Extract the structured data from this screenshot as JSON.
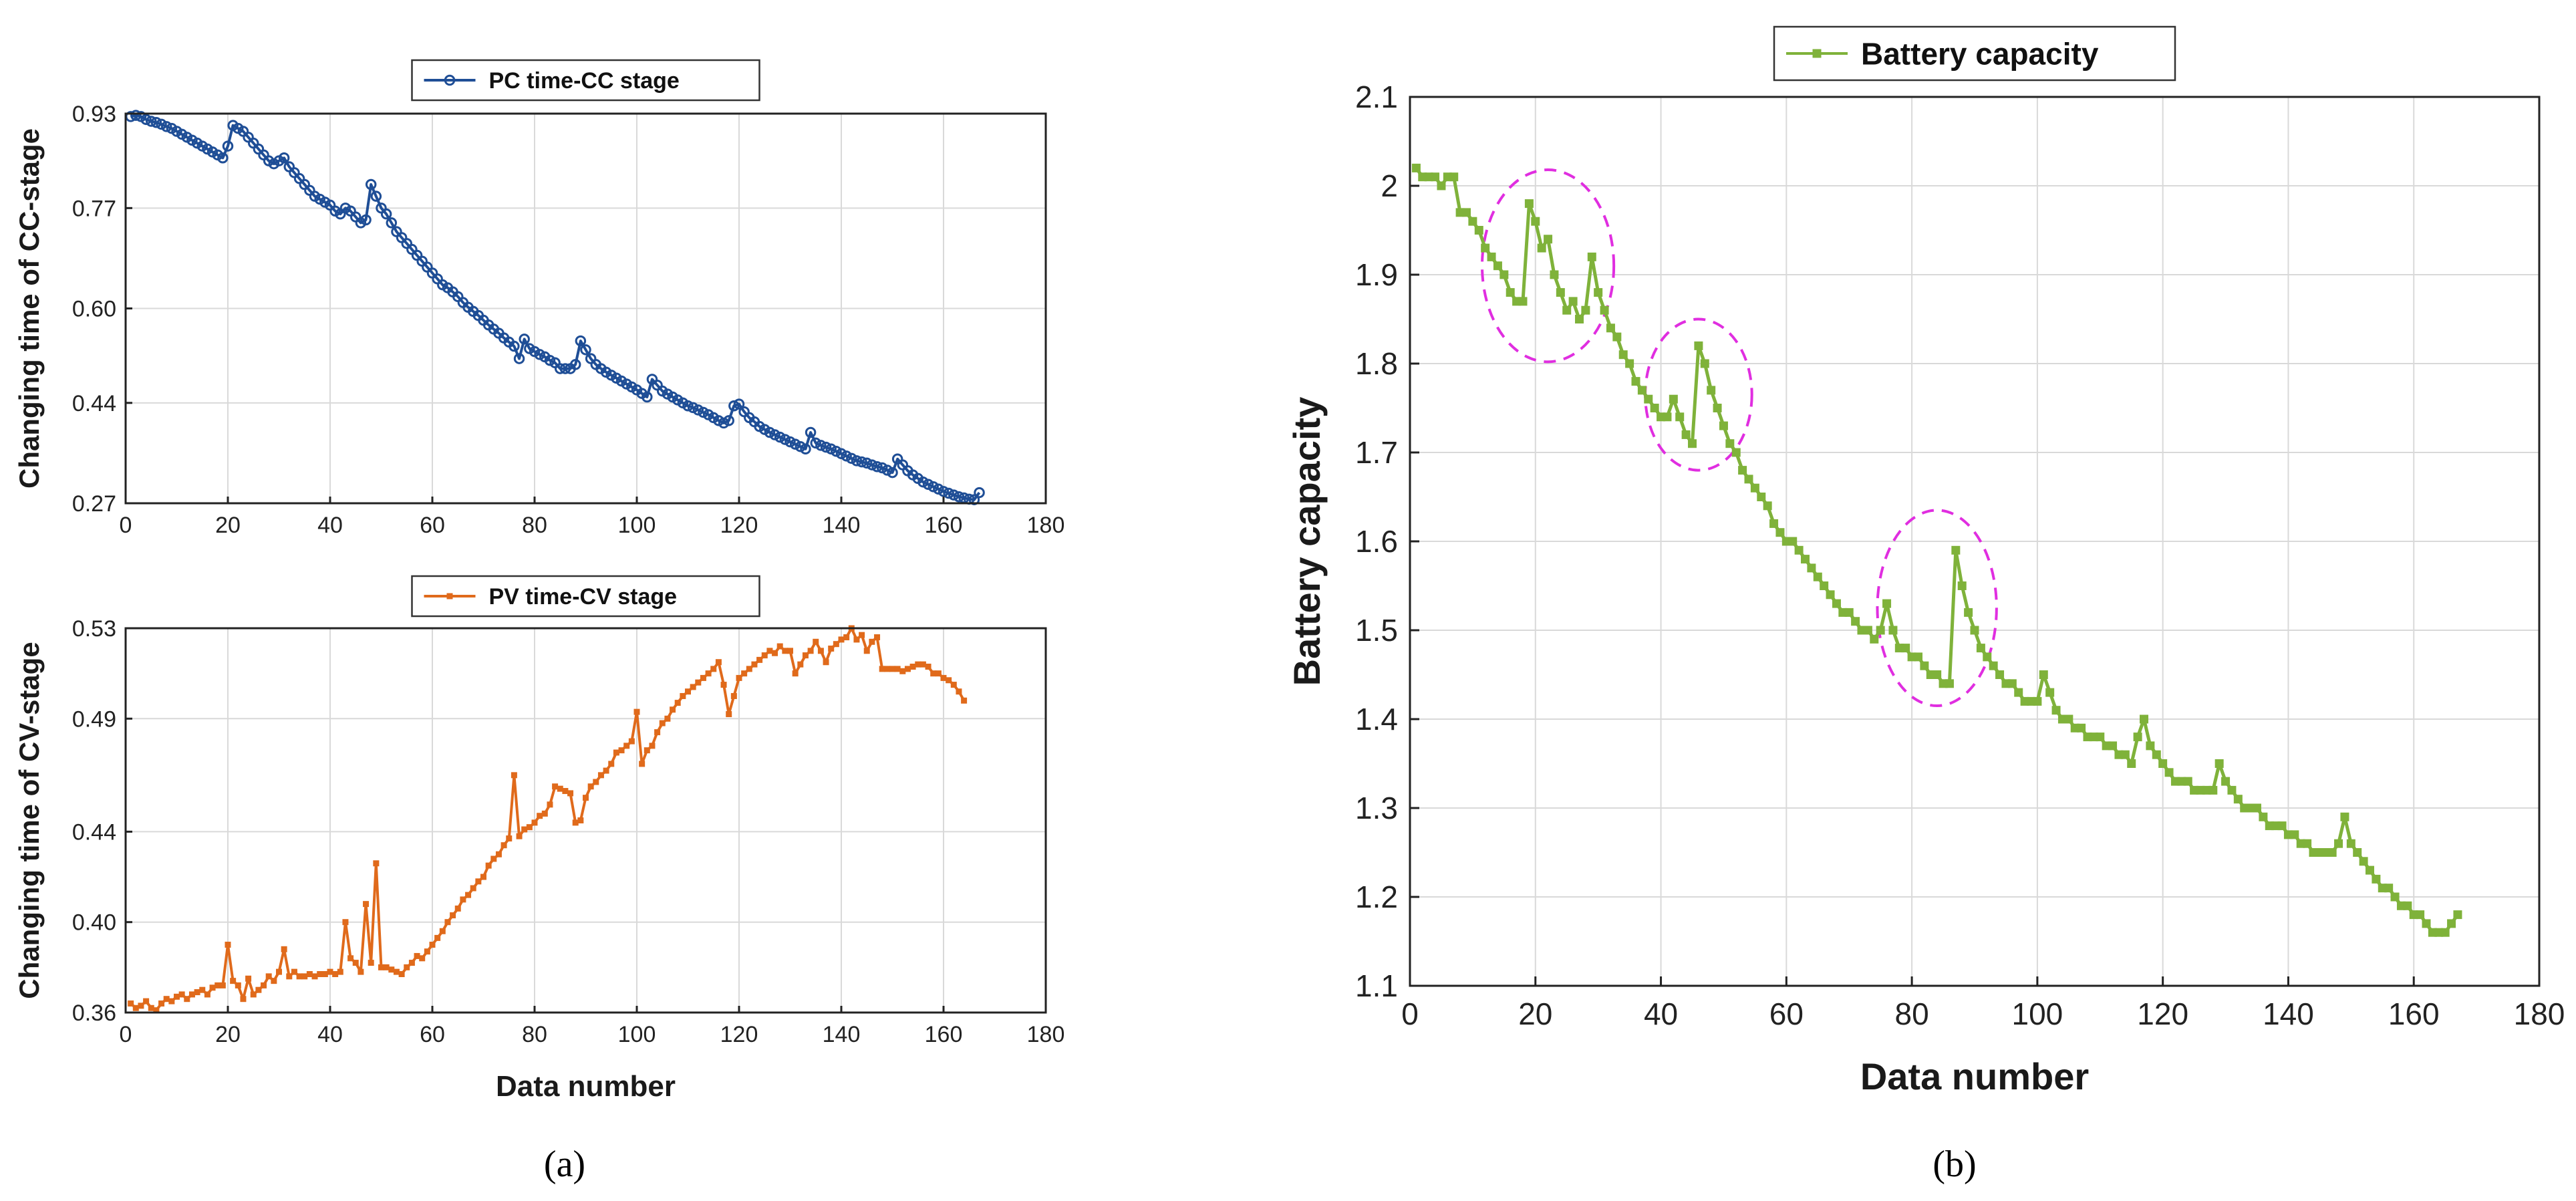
{
  "figure": {
    "panel_a_label": "(a)",
    "panel_b_label": "(b)",
    "colors": {
      "blue": "#1f4e96",
      "orange": "#e06a1b",
      "green": "#7fb23a",
      "circle": "#e02ee0",
      "grid": "#d9d9d9",
      "axis": "#222222"
    }
  },
  "chart_data": [
    {
      "id": "a-top",
      "type": "line",
      "title": "",
      "legend": "PC time-CC stage",
      "legend_position": "top-center",
      "xlabel": "",
      "ylabel": "Changing time of CC-stage",
      "xlim": [
        0,
        180
      ],
      "ylim": [
        0.27,
        0.93
      ],
      "xticks": [
        0,
        20,
        40,
        60,
        80,
        100,
        120,
        140,
        160,
        180
      ],
      "yticks": [
        0.27,
        0.44,
        0.6,
        0.77,
        0.93
      ],
      "ytick_labels": [
        "0.27",
        "0.44",
        "0.60",
        "0.77",
        "0.93"
      ],
      "grid": true,
      "marker": "circle",
      "series": [
        {
          "name": "PC time-CC stage",
          "x_start": 1,
          "values": [
            0.925,
            0.927,
            0.925,
            0.92,
            0.917,
            0.915,
            0.912,
            0.908,
            0.905,
            0.9,
            0.895,
            0.89,
            0.885,
            0.88,
            0.875,
            0.87,
            0.865,
            0.86,
            0.855,
            0.875,
            0.91,
            0.905,
            0.9,
            0.89,
            0.88,
            0.87,
            0.86,
            0.85,
            0.845,
            0.85,
            0.855,
            0.84,
            0.83,
            0.82,
            0.81,
            0.8,
            0.79,
            0.785,
            0.78,
            0.775,
            0.765,
            0.76,
            0.77,
            0.765,
            0.755,
            0.745,
            0.75,
            0.81,
            0.79,
            0.77,
            0.76,
            0.745,
            0.73,
            0.72,
            0.71,
            0.7,
            0.69,
            0.68,
            0.67,
            0.66,
            0.65,
            0.64,
            0.635,
            0.628,
            0.62,
            0.61,
            0.602,
            0.595,
            0.588,
            0.58,
            0.572,
            0.565,
            0.558,
            0.55,
            0.543,
            0.536,
            0.515,
            0.548,
            0.532,
            0.527,
            0.522,
            0.518,
            0.512,
            0.508,
            0.498,
            0.498,
            0.498,
            0.505,
            0.545,
            0.53,
            0.515,
            0.505,
            0.498,
            0.492,
            0.487,
            0.482,
            0.477,
            0.472,
            0.467,
            0.462,
            0.456,
            0.45,
            0.48,
            0.47,
            0.46,
            0.455,
            0.45,
            0.445,
            0.44,
            0.435,
            0.432,
            0.428,
            0.424,
            0.42,
            0.415,
            0.41,
            0.406,
            0.41,
            0.435,
            0.438,
            0.425,
            0.415,
            0.408,
            0.4,
            0.395,
            0.39,
            0.386,
            0.382,
            0.378,
            0.374,
            0.37,
            0.366,
            0.362,
            0.39,
            0.372,
            0.368,
            0.365,
            0.362,
            0.358,
            0.354,
            0.35,
            0.346,
            0.342,
            0.34,
            0.338,
            0.335,
            0.332,
            0.33,
            0.326,
            0.322,
            0.345,
            0.335,
            0.325,
            0.318,
            0.312,
            0.306,
            0.302,
            0.298,
            0.294,
            0.29,
            0.287,
            0.284,
            0.281,
            0.279,
            0.277,
            0.276,
            0.288
          ]
        }
      ]
    },
    {
      "id": "a-bottom",
      "type": "line",
      "title": "",
      "legend": "PV time-CV stage",
      "legend_position": "top-center",
      "xlabel": "Data number",
      "ylabel": "Changing time of CV-stage",
      "xlim": [
        0,
        180
      ],
      "ylim": [
        0.36,
        0.53
      ],
      "xticks": [
        0,
        20,
        40,
        60,
        80,
        100,
        120,
        140,
        160,
        180
      ],
      "yticks": [
        0.36,
        0.4,
        0.44,
        0.49,
        0.53
      ],
      "ytick_labels": [
        "0.36",
        "0.40",
        "0.44",
        "0.49",
        "0.53"
      ],
      "grid": true,
      "marker": "square",
      "series": [
        {
          "name": "PV time-CV stage",
          "x_start": 1,
          "values": [
            0.364,
            0.362,
            0.363,
            0.365,
            0.362,
            0.361,
            0.364,
            0.366,
            0.365,
            0.367,
            0.368,
            0.366,
            0.368,
            0.369,
            0.37,
            0.368,
            0.371,
            0.372,
            0.372,
            0.39,
            0.374,
            0.372,
            0.366,
            0.375,
            0.368,
            0.37,
            0.372,
            0.376,
            0.374,
            0.378,
            0.388,
            0.376,
            0.378,
            0.376,
            0.376,
            0.377,
            0.376,
            0.377,
            0.377,
            0.378,
            0.377,
            0.378,
            0.4,
            0.384,
            0.382,
            0.378,
            0.408,
            0.382,
            0.426,
            0.38,
            0.38,
            0.379,
            0.378,
            0.377,
            0.38,
            0.382,
            0.385,
            0.384,
            0.387,
            0.39,
            0.393,
            0.396,
            0.4,
            0.403,
            0.406,
            0.41,
            0.412,
            0.415,
            0.418,
            0.42,
            0.425,
            0.428,
            0.43,
            0.434,
            0.437,
            0.465,
            0.438,
            0.441,
            0.442,
            0.444,
            0.447,
            0.448,
            0.452,
            0.46,
            0.459,
            0.458,
            0.457,
            0.444,
            0.445,
            0.455,
            0.46,
            0.462,
            0.465,
            0.467,
            0.47,
            0.475,
            0.476,
            0.478,
            0.48,
            0.493,
            0.47,
            0.476,
            0.478,
            0.484,
            0.488,
            0.49,
            0.494,
            0.497,
            0.5,
            0.502,
            0.504,
            0.506,
            0.508,
            0.51,
            0.512,
            0.515,
            0.505,
            0.492,
            0.5,
            0.508,
            0.51,
            0.512,
            0.514,
            0.516,
            0.518,
            0.52,
            0.519,
            0.522,
            0.52,
            0.52,
            0.51,
            0.514,
            0.518,
            0.52,
            0.524,
            0.52,
            0.515,
            0.521,
            0.523,
            0.525,
            0.526,
            0.53,
            0.525,
            0.527,
            0.52,
            0.524,
            0.526,
            0.512,
            0.512,
            0.512,
            0.512,
            0.511,
            0.512,
            0.513,
            0.514,
            0.514,
            0.513,
            0.51,
            0.51,
            0.508,
            0.507,
            0.505,
            0.502,
            0.498
          ]
        }
      ]
    },
    {
      "id": "b",
      "type": "line",
      "title": "",
      "legend": "Battery capacity",
      "legend_position": "top-center",
      "xlabel": "Data number",
      "ylabel": "Battery capacity",
      "xlim": [
        0,
        180
      ],
      "ylim": [
        1.1,
        2.1
      ],
      "xticks": [
        0,
        20,
        40,
        60,
        80,
        100,
        120,
        140,
        160,
        180
      ],
      "yticks": [
        1.1,
        1.2,
        1.3,
        1.4,
        1.5,
        1.6,
        1.7,
        1.8,
        1.9,
        2.0,
        2.1
      ],
      "ytick_labels": [
        "1.1",
        "1.2",
        "1.3",
        "1.4",
        "1.5",
        "1.6",
        "1.7",
        "1.8",
        "1.9",
        "2",
        "2.1"
      ],
      "grid": true,
      "marker": "square",
      "annotations": "dashed ellipses highlighting capacity regeneration near data numbers 22, 46 and 84",
      "highlight_regions": [
        {
          "x": 22,
          "y": 1.91,
          "rx": 10.5,
          "ry": 0.108
        },
        {
          "x": 46,
          "y": 1.765,
          "rx": 8.5,
          "ry": 0.085
        },
        {
          "x": 84,
          "y": 1.525,
          "rx": 9.5,
          "ry": 0.11
        }
      ],
      "series": [
        {
          "name": "Battery capacity",
          "x_start": 1,
          "values": [
            2.02,
            2.01,
            2.01,
            2.01,
            2.0,
            2.01,
            2.01,
            1.97,
            1.97,
            1.96,
            1.95,
            1.93,
            1.92,
            1.91,
            1.9,
            1.88,
            1.87,
            1.87,
            1.98,
            1.96,
            1.93,
            1.94,
            1.9,
            1.88,
            1.86,
            1.87,
            1.85,
            1.86,
            1.92,
            1.88,
            1.86,
            1.84,
            1.83,
            1.81,
            1.8,
            1.78,
            1.77,
            1.76,
            1.75,
            1.74,
            1.74,
            1.76,
            1.74,
            1.72,
            1.71,
            1.82,
            1.8,
            1.77,
            1.75,
            1.73,
            1.71,
            1.7,
            1.68,
            1.67,
            1.66,
            1.65,
            1.64,
            1.62,
            1.61,
            1.6,
            1.6,
            1.59,
            1.58,
            1.57,
            1.56,
            1.55,
            1.54,
            1.53,
            1.52,
            1.52,
            1.51,
            1.5,
            1.5,
            1.49,
            1.5,
            1.53,
            1.5,
            1.48,
            1.48,
            1.47,
            1.47,
            1.46,
            1.45,
            1.45,
            1.44,
            1.44,
            1.59,
            1.55,
            1.52,
            1.5,
            1.48,
            1.47,
            1.46,
            1.45,
            1.44,
            1.44,
            1.43,
            1.42,
            1.42,
            1.42,
            1.45,
            1.43,
            1.41,
            1.4,
            1.4,
            1.39,
            1.39,
            1.38,
            1.38,
            1.38,
            1.37,
            1.37,
            1.36,
            1.36,
            1.35,
            1.38,
            1.4,
            1.37,
            1.36,
            1.35,
            1.34,
            1.33,
            1.33,
            1.33,
            1.32,
            1.32,
            1.32,
            1.32,
            1.35,
            1.33,
            1.32,
            1.31,
            1.3,
            1.3,
            1.3,
            1.29,
            1.28,
            1.28,
            1.28,
            1.27,
            1.27,
            1.26,
            1.26,
            1.25,
            1.25,
            1.25,
            1.25,
            1.26,
            1.29,
            1.26,
            1.25,
            1.24,
            1.23,
            1.22,
            1.21,
            1.21,
            1.2,
            1.19,
            1.19,
            1.18,
            1.18,
            1.17,
            1.16,
            1.16,
            1.16,
            1.17,
            1.18
          ]
        }
      ]
    }
  ]
}
